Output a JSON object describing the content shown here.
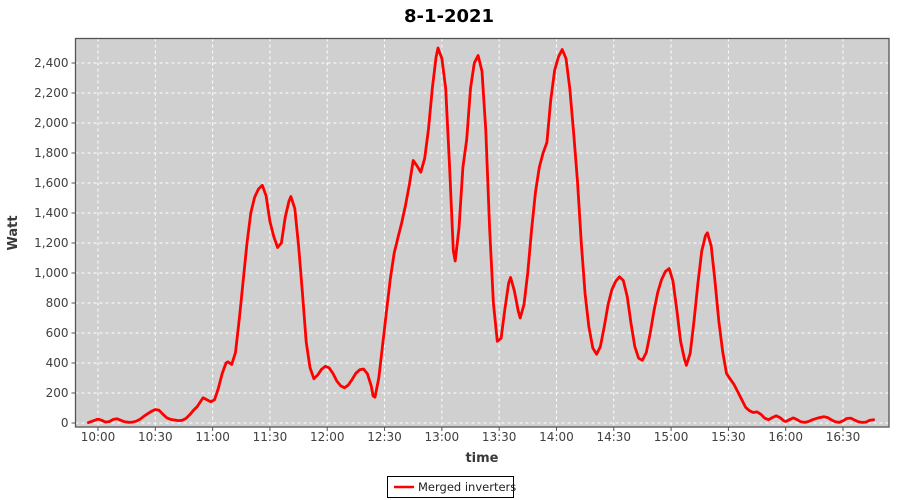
{
  "title": "8-1-2021",
  "axes": {
    "x": {
      "label": "time"
    },
    "y": {
      "label": "Watt"
    }
  },
  "legend": {
    "items": [
      {
        "label": "Merged inverters",
        "color": "#ff0000"
      }
    ]
  },
  "colors": {
    "series": "#ff0000",
    "plot_background": "#d0d0d0",
    "grid": "#ffffff",
    "plot_border": "#545454",
    "page_background": "#ffffff"
  },
  "chart_data": {
    "type": "line",
    "title": "8-1-2021",
    "xlabel": "time",
    "ylabel": "Watt",
    "x_unit": "minutes after 10:00",
    "x_tick_minutes": [
      0,
      30,
      60,
      90,
      120,
      150,
      180,
      210,
      240,
      270,
      300,
      330,
      360,
      390
    ],
    "x_tick_labels": [
      "10:00",
      "10:30",
      "11:00",
      "11:30",
      "12:00",
      "12:30",
      "13:00",
      "13:30",
      "14:00",
      "14:30",
      "15:00",
      "15:30",
      "16:00",
      "16:30"
    ],
    "y_ticks": [
      0,
      200,
      400,
      600,
      800,
      1000,
      1200,
      1400,
      1600,
      1800,
      2000,
      2200,
      2400
    ],
    "y_tick_labels": [
      "0",
      "200",
      "400",
      "600",
      "800",
      "1,000",
      "1,200",
      "1,400",
      "1,600",
      "1,800",
      "2,000",
      "2,200",
      "2,400"
    ],
    "xlim_minutes": [
      -12,
      414
    ],
    "ylim": [
      0,
      2560
    ],
    "grid": true,
    "legend_position": "bottom",
    "series": [
      {
        "name": "Merged inverters",
        "color": "#ff0000",
        "points": [
          [
            -5,
            3
          ],
          [
            -3,
            12
          ],
          [
            0,
            26
          ],
          [
            2,
            18
          ],
          [
            4,
            6
          ],
          [
            6,
            10
          ],
          [
            8,
            24
          ],
          [
            10,
            28
          ],
          [
            12,
            18
          ],
          [
            14,
            8
          ],
          [
            16,
            5
          ],
          [
            18,
            6
          ],
          [
            20,
            12
          ],
          [
            22,
            25
          ],
          [
            24,
            45
          ],
          [
            26,
            62
          ],
          [
            28,
            78
          ],
          [
            30,
            90
          ],
          [
            32,
            85
          ],
          [
            34,
            58
          ],
          [
            36,
            35
          ],
          [
            38,
            24
          ],
          [
            40,
            20
          ],
          [
            42,
            16
          ],
          [
            44,
            18
          ],
          [
            46,
            30
          ],
          [
            48,
            55
          ],
          [
            50,
            85
          ],
          [
            52,
            110
          ],
          [
            54,
            150
          ],
          [
            55,
            168
          ],
          [
            57,
            155
          ],
          [
            59,
            142
          ],
          [
            61,
            155
          ],
          [
            63,
            230
          ],
          [
            65,
            330
          ],
          [
            67,
            400
          ],
          [
            68,
            408
          ],
          [
            70,
            390
          ],
          [
            72,
            470
          ],
          [
            74,
            700
          ],
          [
            76,
            950
          ],
          [
            78,
            1200
          ],
          [
            80,
            1400
          ],
          [
            82,
            1505
          ],
          [
            84,
            1560
          ],
          [
            86,
            1585
          ],
          [
            88,
            1515
          ],
          [
            90,
            1345
          ],
          [
            92,
            1245
          ],
          [
            94,
            1170
          ],
          [
            96,
            1200
          ],
          [
            98,
            1370
          ],
          [
            100,
            1480
          ],
          [
            101,
            1510
          ],
          [
            103,
            1430
          ],
          [
            105,
            1180
          ],
          [
            107,
            870
          ],
          [
            109,
            540
          ],
          [
            111,
            370
          ],
          [
            113,
            295
          ],
          [
            115,
            320
          ],
          [
            117,
            358
          ],
          [
            119,
            378
          ],
          [
            121,
            368
          ],
          [
            123,
            330
          ],
          [
            125,
            280
          ],
          [
            127,
            248
          ],
          [
            129,
            235
          ],
          [
            131,
            252
          ],
          [
            133,
            290
          ],
          [
            135,
            332
          ],
          [
            137,
            355
          ],
          [
            139,
            360
          ],
          [
            141,
            328
          ],
          [
            143,
            248
          ],
          [
            144,
            180
          ],
          [
            145,
            172
          ],
          [
            147,
            300
          ],
          [
            149,
            520
          ],
          [
            151,
            745
          ],
          [
            153,
            960
          ],
          [
            155,
            1130
          ],
          [
            157,
            1235
          ],
          [
            159,
            1335
          ],
          [
            161,
            1455
          ],
          [
            163,
            1590
          ],
          [
            165,
            1750
          ],
          [
            167,
            1715
          ],
          [
            169,
            1672
          ],
          [
            171,
            1765
          ],
          [
            173,
            1960
          ],
          [
            175,
            2230
          ],
          [
            177,
            2440
          ],
          [
            178,
            2500
          ],
          [
            180,
            2430
          ],
          [
            182,
            2230
          ],
          [
            184,
            1720
          ],
          [
            186,
            1150
          ],
          [
            187,
            1080
          ],
          [
            189,
            1300
          ],
          [
            191,
            1705
          ],
          [
            193,
            1890
          ],
          [
            195,
            2230
          ],
          [
            197,
            2400
          ],
          [
            199,
            2450
          ],
          [
            201,
            2345
          ],
          [
            203,
            1950
          ],
          [
            205,
            1300
          ],
          [
            207,
            800
          ],
          [
            209,
            545
          ],
          [
            211,
            565
          ],
          [
            213,
            760
          ],
          [
            215,
            935
          ],
          [
            216,
            970
          ],
          [
            218,
            880
          ],
          [
            220,
            745
          ],
          [
            221,
            700
          ],
          [
            223,
            790
          ],
          [
            225,
            1005
          ],
          [
            227,
            1290
          ],
          [
            229,
            1540
          ],
          [
            231,
            1705
          ],
          [
            233,
            1800
          ],
          [
            235,
            1870
          ],
          [
            237,
            2150
          ],
          [
            239,
            2350
          ],
          [
            241,
            2440
          ],
          [
            243,
            2490
          ],
          [
            245,
            2430
          ],
          [
            247,
            2230
          ],
          [
            249,
            1930
          ],
          [
            251,
            1610
          ],
          [
            253,
            1200
          ],
          [
            255,
            860
          ],
          [
            257,
            640
          ],
          [
            259,
            500
          ],
          [
            261,
            458
          ],
          [
            263,
            510
          ],
          [
            265,
            640
          ],
          [
            267,
            790
          ],
          [
            269,
            890
          ],
          [
            271,
            945
          ],
          [
            273,
            975
          ],
          [
            275,
            950
          ],
          [
            277,
            845
          ],
          [
            279,
            665
          ],
          [
            281,
            510
          ],
          [
            283,
            432
          ],
          [
            285,
            418
          ],
          [
            287,
            470
          ],
          [
            289,
            595
          ],
          [
            291,
            745
          ],
          [
            293,
            870
          ],
          [
            295,
            955
          ],
          [
            297,
            1010
          ],
          [
            299,
            1030
          ],
          [
            301,
            945
          ],
          [
            303,
            755
          ],
          [
            305,
            545
          ],
          [
            307,
            425
          ],
          [
            308,
            385
          ],
          [
            310,
            465
          ],
          [
            312,
            680
          ],
          [
            314,
            925
          ],
          [
            316,
            1145
          ],
          [
            318,
            1250
          ],
          [
            319,
            1268
          ],
          [
            321,
            1180
          ],
          [
            323,
            945
          ],
          [
            325,
            680
          ],
          [
            327,
            475
          ],
          [
            329,
            330
          ],
          [
            331,
            292
          ],
          [
            333,
            256
          ],
          [
            335,
            205
          ],
          [
            337,
            155
          ],
          [
            339,
            105
          ],
          [
            341,
            82
          ],
          [
            343,
            70
          ],
          [
            345,
            74
          ],
          [
            347,
            58
          ],
          [
            349,
            32
          ],
          [
            351,
            22
          ],
          [
            353,
            36
          ],
          [
            355,
            48
          ],
          [
            357,
            36
          ],
          [
            359,
            15
          ],
          [
            360,
            10
          ],
          [
            362,
            22
          ],
          [
            364,
            34
          ],
          [
            366,
            22
          ],
          [
            368,
            8
          ],
          [
            370,
            4
          ],
          [
            372,
            10
          ],
          [
            374,
            22
          ],
          [
            377,
            34
          ],
          [
            380,
            42
          ],
          [
            382,
            36
          ],
          [
            384,
            20
          ],
          [
            386,
            8
          ],
          [
            388,
            4
          ],
          [
            390,
            15
          ],
          [
            392,
            30
          ],
          [
            394,
            33
          ],
          [
            396,
            20
          ],
          [
            398,
            8
          ],
          [
            400,
            4
          ],
          [
            402,
            6
          ],
          [
            404,
            18
          ],
          [
            406,
            22
          ]
        ]
      }
    ]
  }
}
